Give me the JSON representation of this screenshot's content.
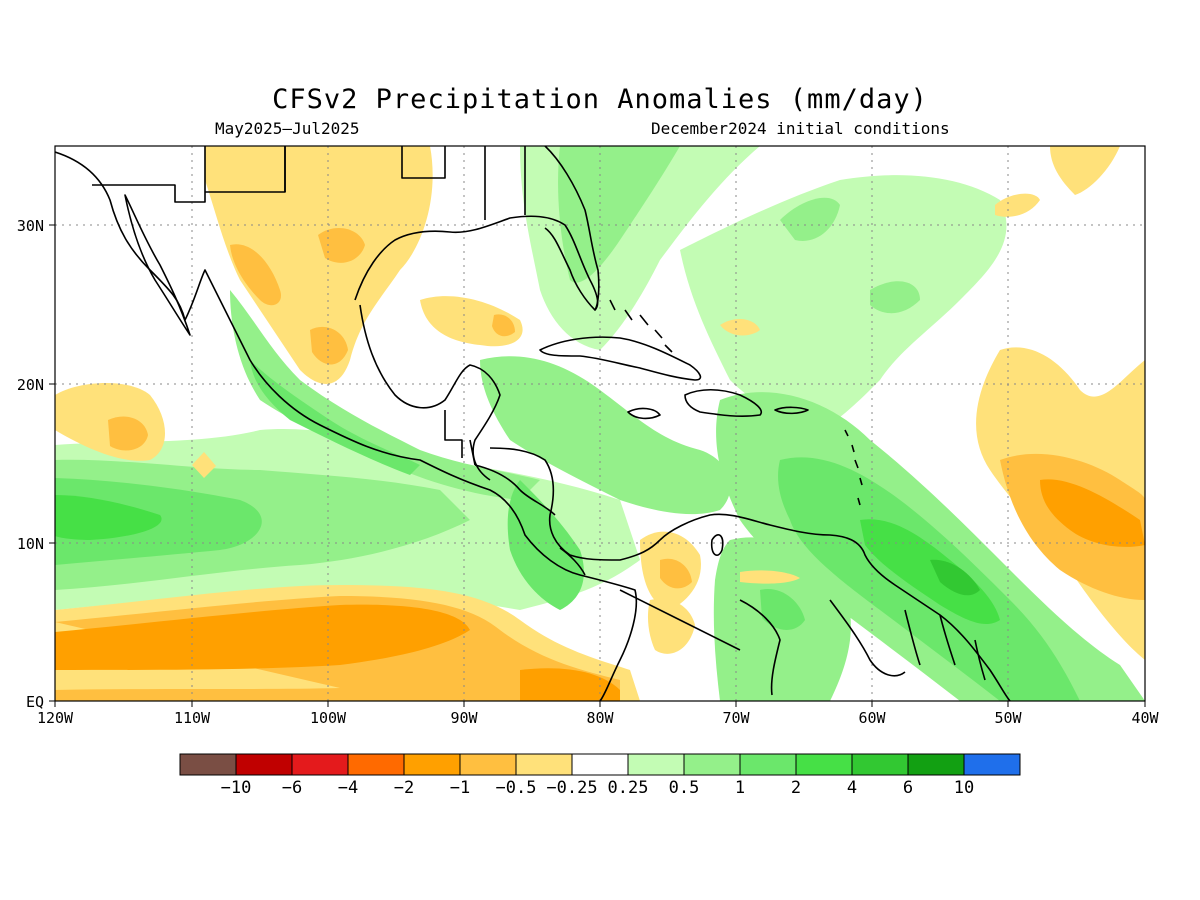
{
  "title": "CFSv2 Precipitation Anomalies (mm/day)",
  "subtitle_left": "May2025–Jul2025",
  "subtitle_right": "December2024 initial conditions",
  "x_ticks": [
    "120W",
    "110W",
    "100W",
    "90W",
    "80W",
    "70W",
    "60W",
    "50W",
    "40W"
  ],
  "y_ticks": [
    "EQ",
    "10N",
    "20N",
    "30N"
  ],
  "colorbar": {
    "colors": [
      "#7a4e44",
      "#c00000",
      "#e41a1c",
      "#ff6a00",
      "#ffa000",
      "#ffbf40",
      "#ffe17a",
      "#ffffff",
      "#c3fcb4",
      "#94f08a",
      "#6be76b",
      "#46e046",
      "#32c832",
      "#12a012",
      "#1f6feb"
    ],
    "labels": [
      "−10",
      "−6",
      "−4",
      "−2",
      "−1",
      "−0.5",
      "−0.25",
      "0.25",
      "0.5",
      "1",
      "2",
      "4",
      "6",
      "10"
    ]
  },
  "palette": {
    "brown": "#7a4e44",
    "dark_red": "#c00000",
    "red": "#e41a1c",
    "orange_red": "#ff6a00",
    "orange": "#ffa000",
    "light_orange": "#ffbf40",
    "yellow": "#ffe17a",
    "white": "#ffffff",
    "pale_green": "#c3fcb4",
    "light_green": "#94f08a",
    "green": "#6be76b",
    "bright_green": "#46e046",
    "mid_green": "#32c832",
    "dark_green": "#12a012",
    "blue": "#1f6feb"
  }
}
